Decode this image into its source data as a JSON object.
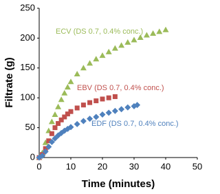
{
  "chart_data": {
    "type": "scatter",
    "x_label": "Time (minutes)",
    "y_label": "Filtrate (g)",
    "xlim": [
      0,
      50
    ],
    "xticks": [
      0,
      10,
      20,
      30,
      40,
      50
    ],
    "ylim": [
      0,
      250
    ],
    "yticks": [
      0,
      50,
      100,
      150,
      200,
      250
    ],
    "grid": false,
    "series": [
      {
        "name": "ECV (DS 0.7, 0.4% conc.)",
        "color": "#9bbb59",
        "marker": "triangle",
        "x": [
          0,
          1,
          2,
          3,
          4,
          5,
          6,
          7,
          8,
          9,
          10,
          12,
          14,
          16,
          18,
          20,
          22,
          24,
          26,
          28,
          30,
          32,
          34,
          36,
          38,
          40
        ],
        "values": [
          0,
          8,
          25,
          45,
          60,
          72,
          85,
          97,
          108,
          118,
          127,
          140,
          150,
          158,
          165,
          171,
          177,
          183,
          188,
          193,
          197,
          201,
          205,
          208,
          211,
          214
        ]
      },
      {
        "name": "EBV (DS 0.7, 0.4% conc.)",
        "color": "#c0504d",
        "marker": "square",
        "x": [
          0,
          1,
          2,
          3,
          4,
          5,
          6,
          7,
          8,
          9,
          10,
          12,
          14,
          16,
          18,
          20,
          22,
          24
        ],
        "values": [
          0,
          5,
          15,
          28,
          40,
          50,
          57,
          63,
          68,
          73,
          77,
          83,
          88,
          92,
          95,
          98,
          100,
          102
        ]
      },
      {
        "name": "EDF (DS 0.7, 0.4% conc.)",
        "color": "#4f81bd",
        "marker": "diamond",
        "x": [
          0,
          1,
          2,
          3,
          4,
          5,
          6,
          7,
          8,
          9,
          10,
          12,
          14,
          16,
          18,
          20,
          22,
          24,
          26,
          28,
          30,
          31
        ],
        "values": [
          0,
          3,
          10,
          18,
          26,
          32,
          37,
          41,
          45,
          48,
          51,
          56,
          61,
          65,
          68,
          72,
          75,
          78,
          81,
          84,
          86,
          88
        ]
      }
    ]
  }
}
